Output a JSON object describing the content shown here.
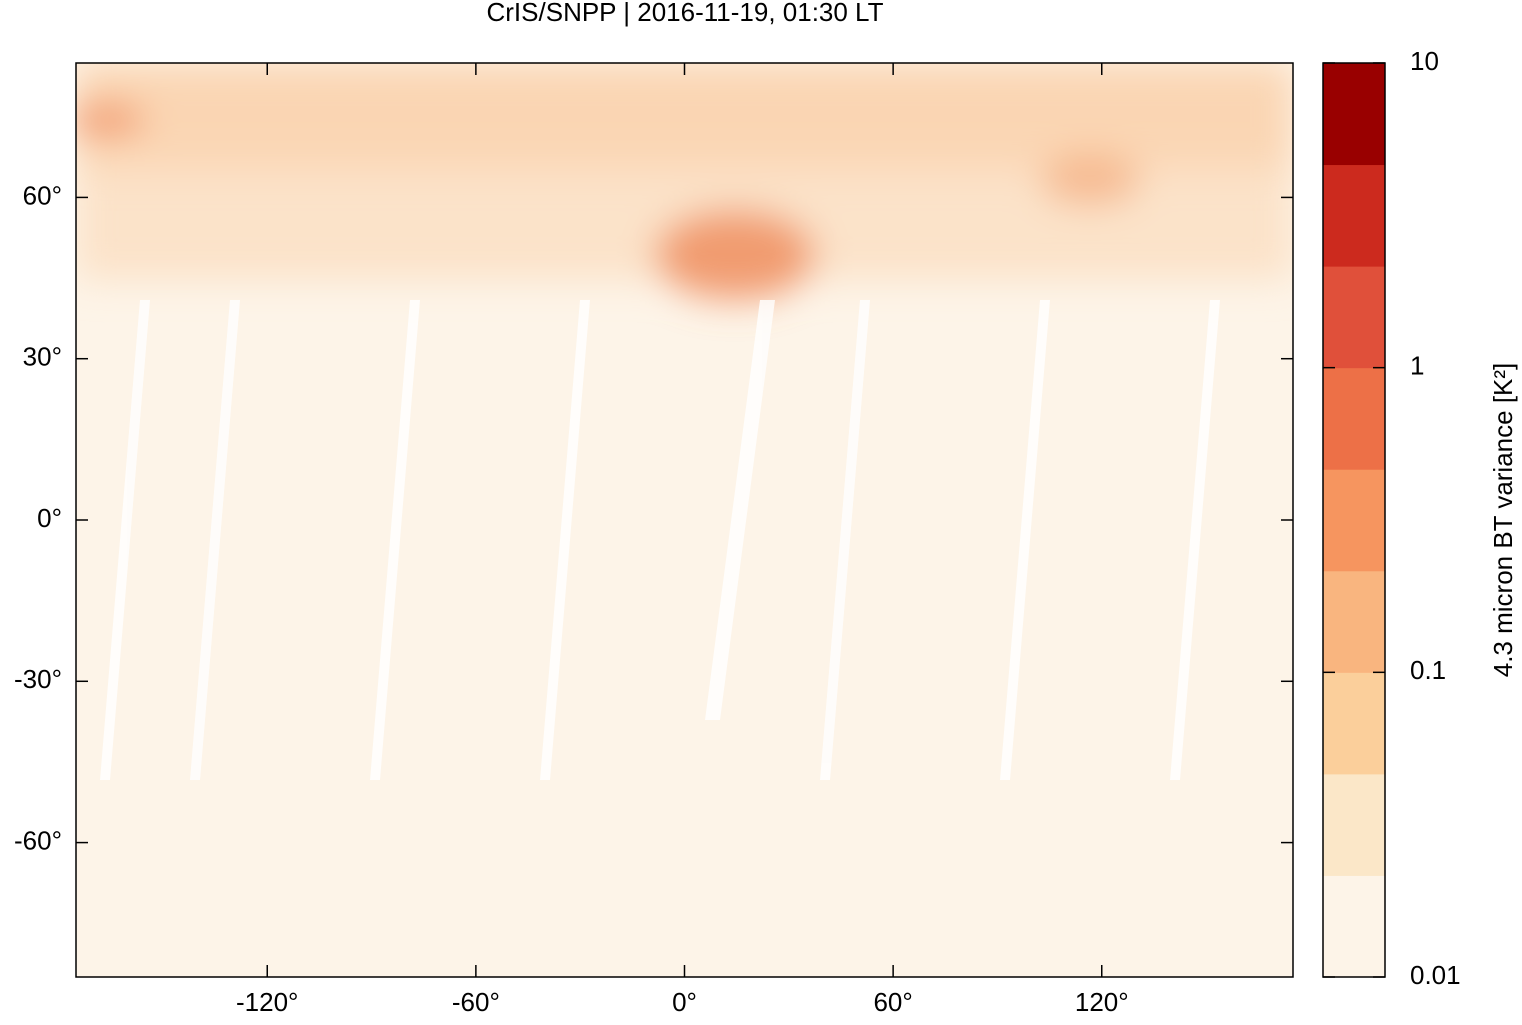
{
  "chart_data": {
    "type": "map",
    "title": "CrIS/SNPP | 2016-11-19, 01:30 LT",
    "xlim": [
      -175,
      175
    ],
    "ylim": [
      -85,
      85
    ],
    "xticks": [
      {
        "value": -120,
        "label": "-120°"
      },
      {
        "value": -60,
        "label": "-60°"
      },
      {
        "value": 0,
        "label": "0°"
      },
      {
        "value": 60,
        "label": "60°"
      },
      {
        "value": 120,
        "label": "120°"
      }
    ],
    "yticks": [
      {
        "value": -60,
        "label": "-60°"
      },
      {
        "value": -30,
        "label": "-30°"
      },
      {
        "value": 0,
        "label": "0°"
      },
      {
        "value": 30,
        "label": "30°"
      },
      {
        "value": 60,
        "label": "60°"
      }
    ],
    "colorbar": {
      "label": "4.3 micron BT variance [K²]",
      "log_scale": true,
      "clim": [
        0.01,
        10
      ],
      "ticks": [
        0.01,
        0.1,
        1,
        10
      ],
      "colors": [
        "#fdf4e8",
        "#fbe7c8",
        "#fbcf9b",
        "#f9b57f",
        "#f6955f",
        "#ed7047",
        "#e0503a",
        "#cc2a1e",
        "#990000"
      ]
    }
  }
}
